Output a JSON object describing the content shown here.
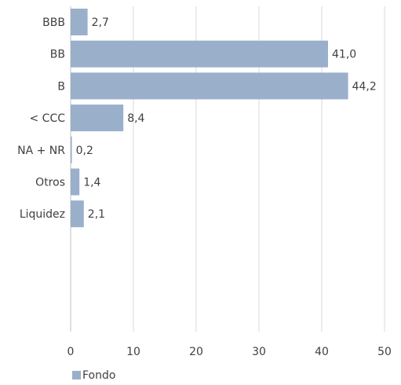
{
  "chart_data": {
    "type": "bar",
    "orientation": "horizontal",
    "categories": [
      "BBB",
      "BB",
      "B",
      "< CCC",
      "NA + NR",
      "Otros",
      "Liquidez"
    ],
    "series": [
      {
        "name": "Fondo",
        "values": [
          2.7,
          41.0,
          44.2,
          8.4,
          0.2,
          1.4,
          2.1
        ],
        "labels": [
          "2,7",
          "41,0",
          "44,2",
          "8,4",
          "0,2",
          "1,4",
          "2,1"
        ],
        "color": "#9aafca"
      }
    ],
    "xlim": [
      0,
      50
    ],
    "xticks": [
      "0",
      "10",
      "20",
      "30",
      "40",
      "50"
    ],
    "grid": "vertical",
    "legend_position": "bottom-left",
    "title": "",
    "xlabel": "",
    "ylabel": ""
  },
  "legend": {
    "label": "Fondo"
  }
}
